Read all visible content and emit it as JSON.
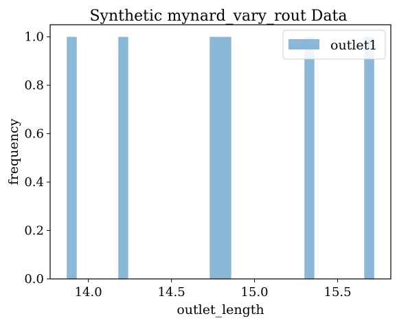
{
  "chart_data": {
    "type": "bar",
    "title": "Synthetic mynard_vary_rout Data",
    "xlabel": "outlet_length",
    "ylabel": "frequency",
    "xlim": [
      13.77,
      15.82
    ],
    "ylim": [
      0,
      1.05
    ],
    "x_ticks": [
      14.0,
      14.5,
      15.0,
      15.5
    ],
    "x_tick_labels": [
      "14.0",
      "14.5",
      "15.0",
      "15.5"
    ],
    "y_ticks": [
      0.0,
      0.2,
      0.4,
      0.6,
      0.8,
      1.0
    ],
    "y_tick_labels": [
      "0.0",
      "0.2",
      "0.4",
      "0.6",
      "0.8",
      "1.0"
    ],
    "grid": false,
    "legend_position": "top-right",
    "series": [
      {
        "name": "outlet1",
        "color": "#8ab8d9",
        "bins": [
          {
            "x0": 13.87,
            "x1": 13.93,
            "value": 1
          },
          {
            "x0": 14.18,
            "x1": 14.24,
            "value": 1
          },
          {
            "x0": 14.73,
            "x1": 14.86,
            "value": 1
          },
          {
            "x0": 15.3,
            "x1": 15.36,
            "value": 1
          },
          {
            "x0": 15.66,
            "x1": 15.72,
            "value": 1
          }
        ]
      }
    ]
  }
}
